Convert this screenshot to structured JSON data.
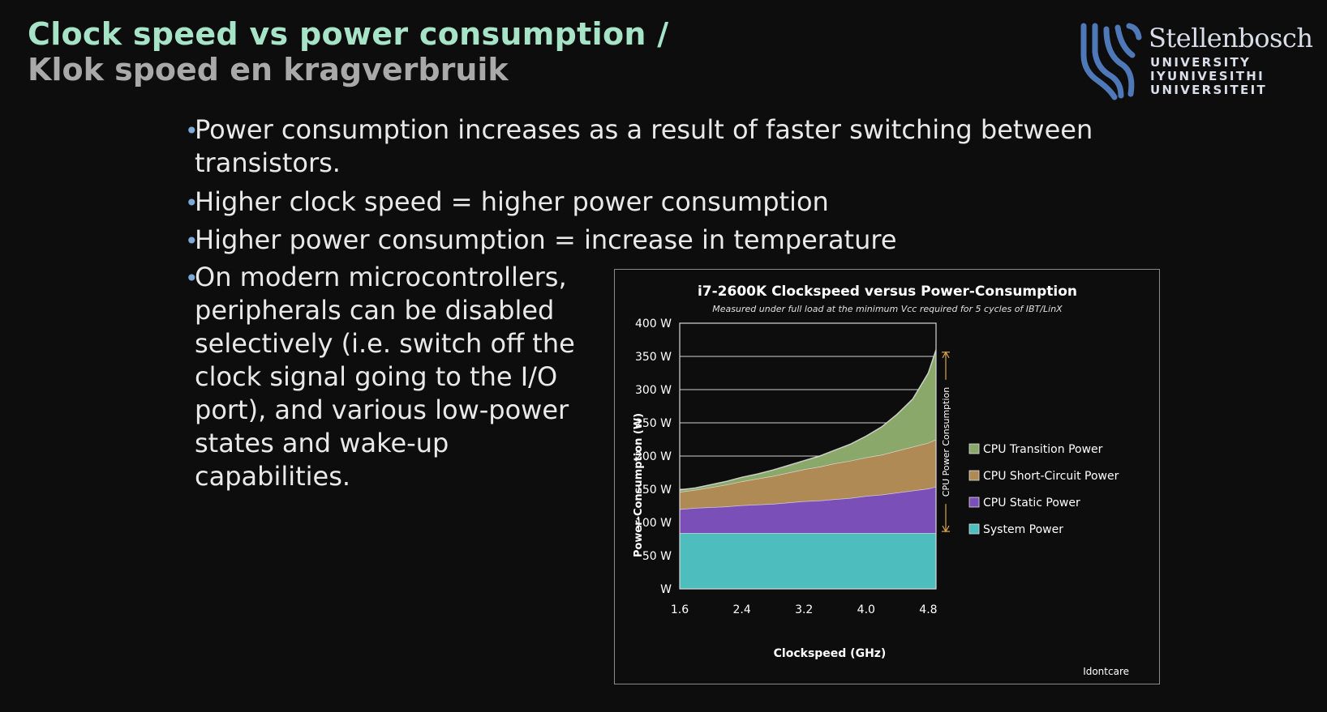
{
  "slide": {
    "title_line1": "Clock speed vs power consumption /",
    "title_line2": "Klok spoed en kragverbruik"
  },
  "logo": {
    "name": "Stellenbosch",
    "line1": "UNIVERSITY",
    "line2": "IYUNIVESITHI",
    "line3": "UNIVERSITEIT"
  },
  "bullets": [
    {
      "lines": [
        "Power consumption increases as a result of faster switching between",
        "transistors."
      ]
    },
    {
      "lines": [
        "Higher clock speed = higher power consumption"
      ]
    },
    {
      "lines": [
        "Higher power consumption = increase in temperature"
      ]
    },
    {
      "lines": [
        "On modern microcontrollers,",
        "peripherals can be disabled",
        "selectively (i.e. switch off the",
        "clock signal going to the I/O",
        "port), and various low-power",
        "states and wake-up",
        "capabilities."
      ]
    }
  ],
  "chart_data": {
    "type": "area",
    "stacked": true,
    "title": "i7-2600K Clockspeed versus Power-Consumption",
    "subtitle": "Measured under full load at the minimum Vcc required for 5 cycles of IBT/LinX",
    "xlabel": "Clockspeed (GHz)",
    "ylabel": "Power-Consumption (W)",
    "annotation": "CPU Power Consumption",
    "credit": "Idontcare",
    "xlim": [
      1.6,
      4.9
    ],
    "ylim": [
      0,
      400
    ],
    "x_ticks": [
      "1.6",
      "2.4",
      "3.2",
      "4.0",
      "4.8"
    ],
    "x_tick_values": [
      1.6,
      2.4,
      3.2,
      4.0,
      4.8
    ],
    "y_ticks": [
      "W",
      "50 W",
      "100 W",
      "150 W",
      "200 W",
      "250 W",
      "300 W",
      "350 W",
      "400 W"
    ],
    "y_tick_values": [
      0,
      50,
      100,
      150,
      200,
      250,
      300,
      350,
      400
    ],
    "grid": true,
    "legend_position": "right",
    "x": [
      1.6,
      1.8,
      2.0,
      2.2,
      2.4,
      2.6,
      2.8,
      3.0,
      3.2,
      3.4,
      3.6,
      3.8,
      4.0,
      4.2,
      4.4,
      4.6,
      4.8,
      4.9
    ],
    "series": [
      {
        "name": "System Power",
        "color": "#4dbdbd",
        "values": [
          84,
          84,
          84,
          84,
          84,
          84,
          84,
          84,
          84,
          84,
          84,
          84,
          84,
          84,
          84,
          84,
          84,
          84
        ]
      },
      {
        "name": "CPU Static Power",
        "color": "#7a4fb8",
        "values": [
          36,
          38,
          39,
          40,
          42,
          43,
          44,
          46,
          48,
          49,
          51,
          53,
          56,
          58,
          61,
          64,
          67,
          70
        ]
      },
      {
        "name": "CPU Short-Circuit Power",
        "color": "#b08a55",
        "values": [
          26,
          27,
          30,
          33,
          36,
          39,
          42,
          45,
          48,
          51,
          54,
          56,
          58,
          60,
          63,
          66,
          69,
          71
        ]
      },
      {
        "name": "CPU Transition Power",
        "color": "#8aa86a",
        "values": [
          3,
          3,
          4,
          5,
          6,
          7,
          9,
          11,
          13,
          16,
          20,
          25,
          32,
          42,
          55,
          72,
          105,
          135
        ]
      }
    ]
  },
  "colors": {
    "title": "#a6e3c7",
    "subtitle": "#a9a9a9",
    "bullet_dot": "#7fa9d9",
    "logo": "#d9dde8"
  }
}
